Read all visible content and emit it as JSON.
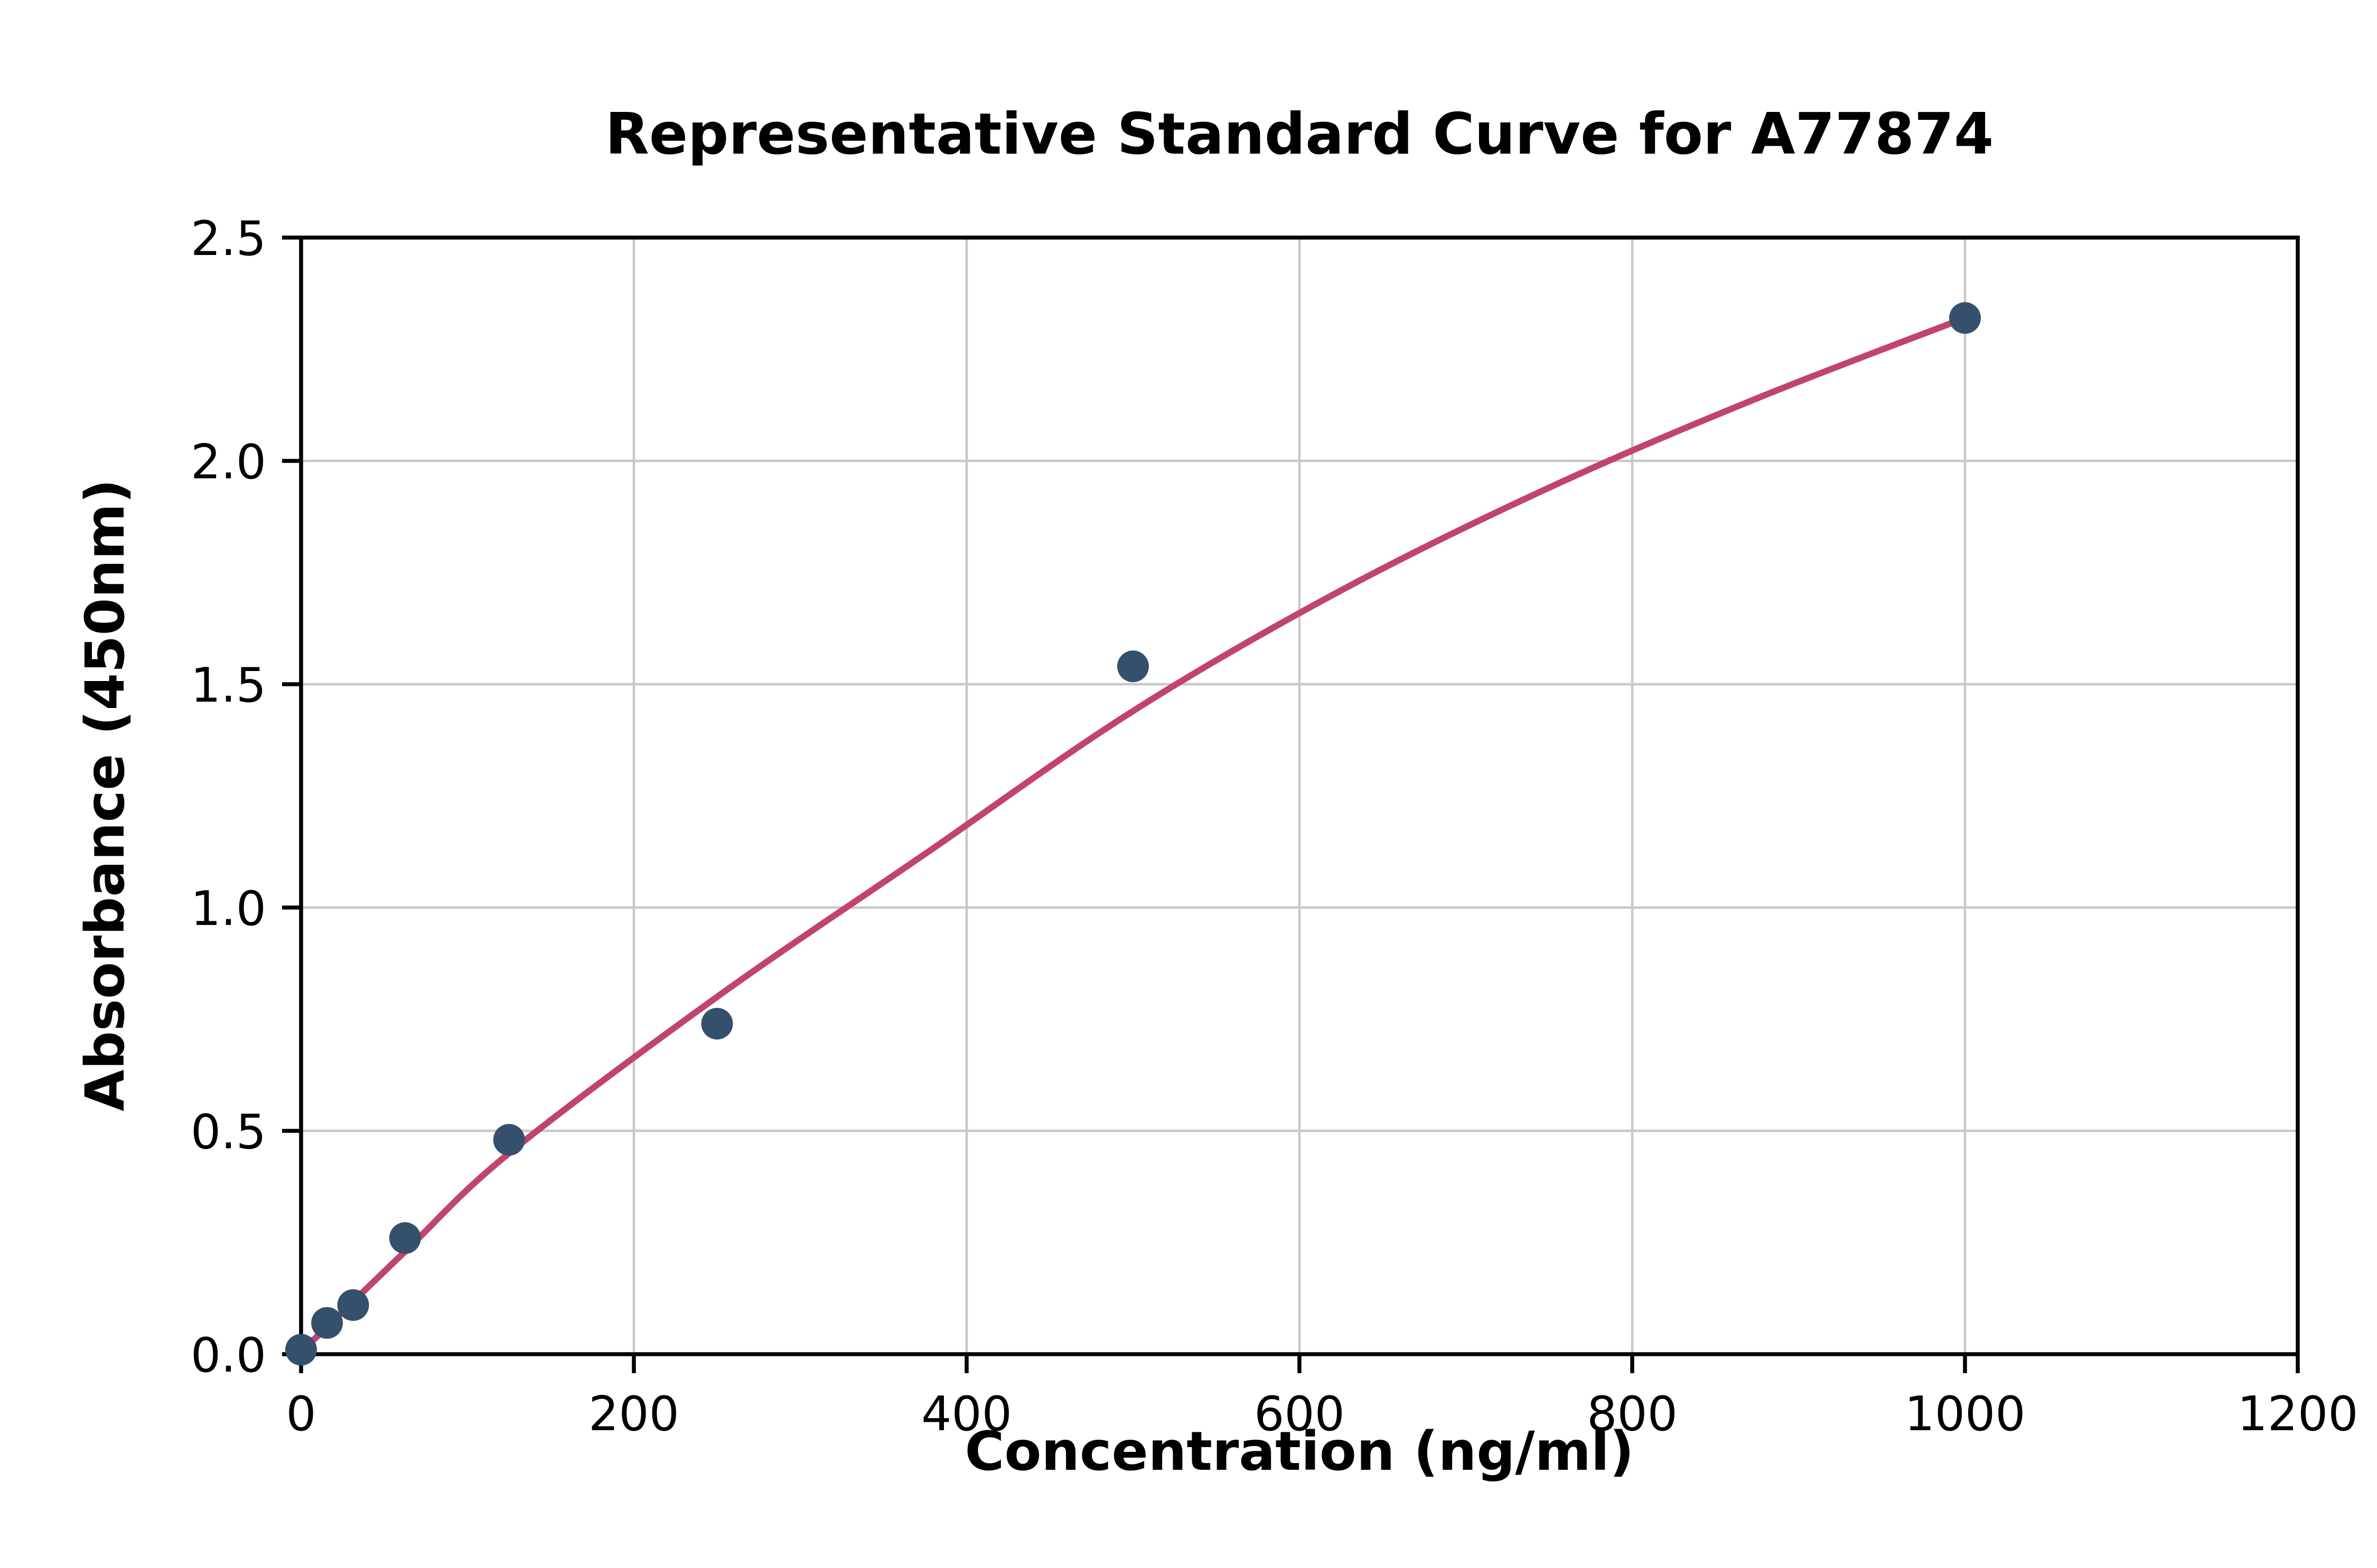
{
  "chart_data": {
    "type": "scatter",
    "title": "Representative Standard Curve for A77874",
    "xlabel": "Concentration (ng/ml)",
    "ylabel": "Absorbance (450nm)",
    "xlim": [
      0,
      1200
    ],
    "ylim": [
      0,
      2.5
    ],
    "x_ticks": [
      0,
      200,
      400,
      600,
      800,
      1000,
      1200
    ],
    "x_tick_labels": [
      "0",
      "200",
      "400",
      "600",
      "800",
      "1000",
      "1200"
    ],
    "y_ticks": [
      0,
      0.5,
      1.0,
      1.5,
      2.0,
      2.5
    ],
    "y_tick_labels": [
      "0.0",
      "0.5",
      "1.0",
      "1.5",
      "2.0",
      "2.5"
    ],
    "grid": true,
    "legend": "none",
    "points": [
      {
        "x": 0,
        "y": 0.01
      },
      {
        "x": 15.6,
        "y": 0.07
      },
      {
        "x": 31.3,
        "y": 0.11
      },
      {
        "x": 62.5,
        "y": 0.26
      },
      {
        "x": 125,
        "y": 0.48
      },
      {
        "x": 250,
        "y": 0.74
      },
      {
        "x": 500,
        "y": 1.54
      },
      {
        "x": 1000,
        "y": 2.32
      }
    ],
    "fit_curve_points": [
      {
        "x": 0,
        "y": 0.005
      },
      {
        "x": 62.5,
        "y": 0.23
      },
      {
        "x": 125,
        "y": 0.45
      },
      {
        "x": 250,
        "y": 0.8
      },
      {
        "x": 375,
        "y": 1.12
      },
      {
        "x": 500,
        "y": 1.44
      },
      {
        "x": 625,
        "y": 1.71
      },
      {
        "x": 750,
        "y": 1.94
      },
      {
        "x": 875,
        "y": 2.14
      },
      {
        "x": 1000,
        "y": 2.32
      }
    ],
    "colors": {
      "points": "#35506d",
      "curve": "#c0446f",
      "grid": "#c8c8c8",
      "axis": "#000000",
      "background": "#ffffff"
    }
  }
}
